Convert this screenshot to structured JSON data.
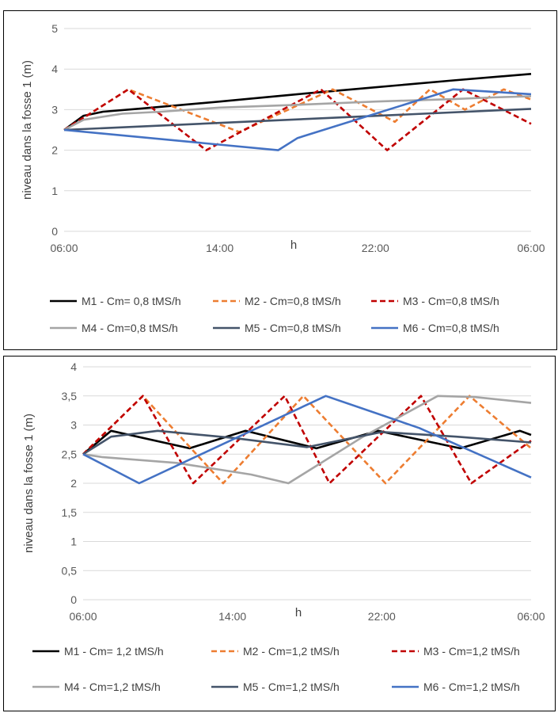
{
  "chart_data": [
    {
      "type": "line",
      "title": "",
      "xlabel": "h",
      "ylabel": "niveau dans la fosse 1 (m)",
      "x_tick_labels": [
        "06:00",
        "14:00",
        "22:00",
        "06:00"
      ],
      "y_tick_labels": [
        "0",
        "1",
        "2",
        "3",
        "4",
        "5"
      ],
      "ylim": [
        0,
        5
      ],
      "xlim_hours": [
        0,
        24
      ],
      "grid": "horizontal",
      "legend_position": "bottom",
      "series": [
        {
          "name": "M1 - Cm= 0,8 tMS/h",
          "color": "#000000",
          "dash": "solid",
          "x": [
            0,
            1,
            2,
            4,
            8,
            12,
            16,
            20,
            24
          ],
          "y": [
            2.5,
            2.85,
            2.95,
            3.03,
            3.2,
            3.38,
            3.55,
            3.72,
            3.88
          ]
        },
        {
          "name": "M2 - Cm=0,8 tMS/h",
          "color": "#ED7D31",
          "dash": "dashed",
          "x": [
            0,
            1,
            3.3,
            9,
            13.8,
            17,
            18.8,
            20.6,
            22.6,
            24
          ],
          "y": [
            2.5,
            2.8,
            3.5,
            2.45,
            3.5,
            2.7,
            3.5,
            3.0,
            3.5,
            3.25
          ]
        },
        {
          "name": "M3 - Cm=0,8 tMS/h",
          "color": "#C00000",
          "dash": "dashed",
          "x": [
            0,
            1,
            3.3,
            7.3,
            13.2,
            16.6,
            20.5,
            24
          ],
          "y": [
            2.5,
            2.8,
            3.5,
            2.0,
            3.5,
            2.0,
            3.5,
            2.65
          ]
        },
        {
          "name": "M4 - Cm=0,8 tMS/h",
          "color": "#A5A5A5",
          "dash": "solid",
          "x": [
            0,
            1,
            3,
            5,
            8,
            12,
            16,
            20,
            22,
            24
          ],
          "y": [
            2.5,
            2.75,
            2.9,
            2.95,
            3.05,
            3.12,
            3.2,
            3.26,
            3.3,
            3.33
          ]
        },
        {
          "name": "M5 - Cm=0,8 tMS/h",
          "color": "#44546A",
          "dash": "solid",
          "x": [
            0,
            24
          ],
          "y": [
            2.5,
            3.02
          ]
        },
        {
          "name": "M6 - Cm=0,8 tMS/h",
          "color": "#4472C4",
          "dash": "solid",
          "x": [
            0,
            11,
            12,
            20,
            24
          ],
          "y": [
            2.5,
            2.0,
            2.3,
            3.5,
            3.38
          ]
        }
      ]
    },
    {
      "type": "line",
      "title": "",
      "xlabel": "h",
      "ylabel": "niveau dans la fosse 1 (m)",
      "x_tick_labels": [
        "06:00",
        "14:00",
        "22:00",
        "06:00"
      ],
      "y_tick_labels": [
        "0",
        "0,5",
        "1",
        "1,5",
        "2",
        "2,5",
        "3",
        "3,5",
        "4"
      ],
      "ylim": [
        0,
        4
      ],
      "xlim_hours": [
        0,
        24
      ],
      "grid": "horizontal",
      "legend_position": "bottom",
      "series": [
        {
          "name": "M1 - Cm= 1,2 tMS/h",
          "color": "#000000",
          "dash": "solid",
          "x": [
            0,
            1.5,
            5.7,
            8.7,
            12.5,
            15.8,
            20.2,
            23.4,
            24
          ],
          "y": [
            2.5,
            2.9,
            2.6,
            2.9,
            2.6,
            2.9,
            2.6,
            2.9,
            2.83
          ]
        },
        {
          "name": "M2 - Cm=1,2 tMS/h",
          "color": "#ED7D31",
          "dash": "dashed",
          "x": [
            0,
            3.2,
            7.5,
            11.8,
            16.2,
            20.7,
            24
          ],
          "y": [
            2.5,
            3.5,
            2.0,
            3.5,
            2.0,
            3.5,
            2.6
          ]
        },
        {
          "name": "M3 - Cm=1,2 tMS/h",
          "color": "#C00000",
          "dash": "dashed",
          "x": [
            0,
            3.2,
            5.9,
            10.8,
            13.2,
            18.1,
            20.8,
            24
          ],
          "y": [
            2.5,
            3.5,
            2.0,
            3.5,
            2.0,
            3.5,
            2.0,
            2.73
          ]
        },
        {
          "name": "M4 - Cm=1,2 tMS/h",
          "color": "#A5A5A5",
          "dash": "solid",
          "x": [
            0,
            1,
            5,
            9,
            11,
            15,
            19,
            21,
            24
          ],
          "y": [
            2.5,
            2.45,
            2.35,
            2.15,
            2.0,
            2.8,
            3.5,
            3.48,
            3.38
          ]
        },
        {
          "name": "M5 - Cm=1,2 tMS/h",
          "color": "#44546A",
          "dash": "solid",
          "x": [
            0,
            1.5,
            4,
            8,
            12,
            16,
            20,
            24
          ],
          "y": [
            2.5,
            2.8,
            2.9,
            2.78,
            2.62,
            2.88,
            2.8,
            2.7
          ]
        },
        {
          "name": "M6 - Cm=1,2 tMS/h",
          "color": "#4472C4",
          "dash": "solid",
          "x": [
            0,
            3,
            13,
            18,
            24
          ],
          "y": [
            2.5,
            2.0,
            3.5,
            2.95,
            2.1
          ]
        }
      ]
    }
  ]
}
